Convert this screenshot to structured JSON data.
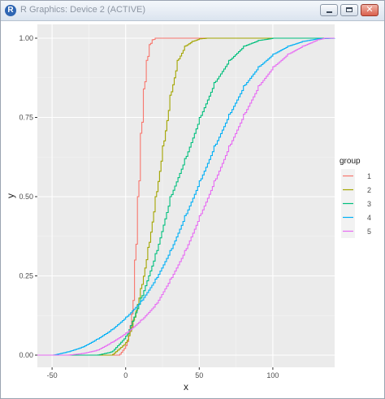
{
  "window": {
    "title": "R Graphics: Device 2 (ACTIVE)",
    "icon": "r-logo-icon"
  },
  "colors": {
    "panel_bg": "#ebebeb",
    "grid_major": "#ffffff",
    "text": "#4d4d4d"
  },
  "chart_data": {
    "type": "line",
    "xlabel": "x",
    "ylabel": "y",
    "xlim": [
      -60,
      142
    ],
    "ylim": [
      0,
      1
    ],
    "x_ticks": [
      -50,
      0,
      50,
      100
    ],
    "x_tick_labels": [
      "-50",
      "0",
      "50",
      "100"
    ],
    "y_ticks": [
      0,
      0.25,
      0.5,
      0.75,
      1
    ],
    "y_tick_labels": [
      "0.00",
      "0.25",
      "0.50",
      "0.75",
      "1.00"
    ],
    "grid": true,
    "legend": {
      "title": "group",
      "placement": "right"
    },
    "series": [
      {
        "name": "1",
        "color": "#f8766d",
        "x": [
          -60,
          -5,
          0,
          4,
          6,
          8,
          10,
          12,
          14,
          16,
          18,
          20,
          25,
          142
        ],
        "y": [
          0,
          0,
          0.03,
          0.13,
          0.3,
          0.5,
          0.7,
          0.84,
          0.93,
          0.98,
          0.995,
          1,
          1,
          1
        ]
      },
      {
        "name": "2",
        "color": "#a3a500",
        "x": [
          -60,
          -10,
          0,
          5,
          10,
          15,
          20,
          25,
          30,
          35,
          40,
          45,
          50,
          55,
          142
        ],
        "y": [
          0,
          0,
          0.04,
          0.11,
          0.21,
          0.34,
          0.5,
          0.66,
          0.82,
          0.93,
          0.975,
          0.99,
          0.998,
          1,
          1
        ]
      },
      {
        "name": "3",
        "color": "#00bf7d",
        "x": [
          -60,
          -20,
          -10,
          0,
          10,
          20,
          30,
          40,
          50,
          60,
          70,
          80,
          90,
          100,
          142
        ],
        "y": [
          0,
          0,
          0.01,
          0.06,
          0.18,
          0.32,
          0.5,
          0.62,
          0.75,
          0.86,
          0.93,
          0.975,
          0.993,
          1,
          1
        ]
      },
      {
        "name": "4",
        "color": "#00b0f6",
        "x": [
          -60,
          -50,
          -40,
          -30,
          -20,
          -10,
          0,
          10,
          20,
          30,
          40,
          50,
          60,
          70,
          80,
          90,
          100,
          110,
          120,
          130,
          142
        ],
        "y": [
          0,
          0,
          0.01,
          0.025,
          0.05,
          0.08,
          0.12,
          0.17,
          0.24,
          0.33,
          0.44,
          0.55,
          0.66,
          0.76,
          0.85,
          0.91,
          0.95,
          0.975,
          0.99,
          0.998,
          1
        ]
      },
      {
        "name": "5",
        "color": "#e76bf3",
        "x": [
          -60,
          -40,
          -30,
          -20,
          -10,
          0,
          10,
          20,
          30,
          40,
          50,
          60,
          70,
          80,
          90,
          100,
          110,
          120,
          130,
          135,
          142
        ],
        "y": [
          0,
          0,
          0.005,
          0.015,
          0.04,
          0.07,
          0.11,
          0.16,
          0.24,
          0.33,
          0.44,
          0.55,
          0.66,
          0.76,
          0.85,
          0.91,
          0.95,
          0.975,
          0.995,
          1,
          1
        ]
      }
    ]
  }
}
